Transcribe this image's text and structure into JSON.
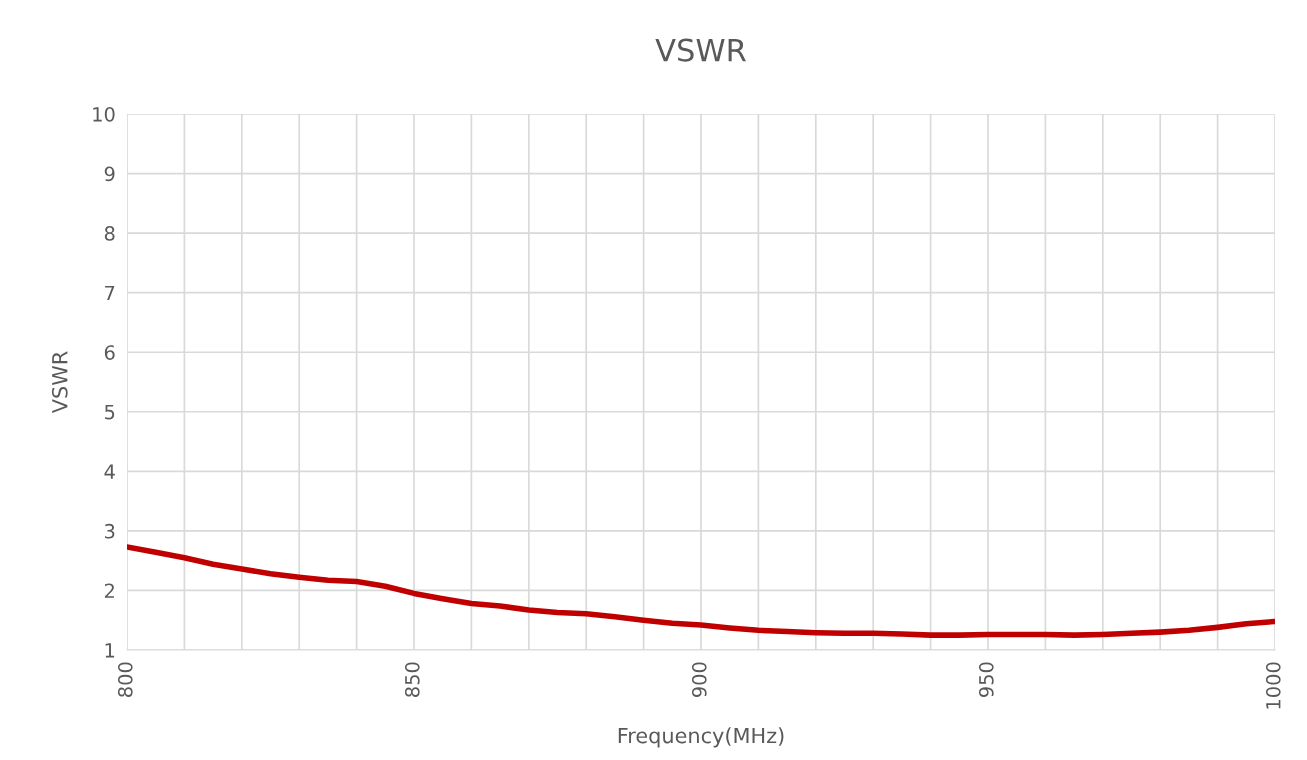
{
  "chart_data": {
    "type": "line",
    "title": "VSWR",
    "xlabel": "Frequency(MHz)",
    "ylabel": "VSWR",
    "x": [
      800,
      805,
      810,
      815,
      820,
      825,
      830,
      835,
      840,
      845,
      850,
      855,
      860,
      865,
      870,
      875,
      880,
      885,
      890,
      895,
      900,
      905,
      910,
      915,
      920,
      925,
      930,
      935,
      940,
      945,
      950,
      955,
      960,
      965,
      970,
      975,
      980,
      985,
      990,
      995,
      1000
    ],
    "series": [
      {
        "color": "#c00000",
        "values": [
          2.73,
          2.64,
          2.55,
          2.44,
          2.36,
          2.28,
          2.22,
          2.17,
          2.15,
          2.07,
          1.95,
          1.86,
          1.78,
          1.74,
          1.67,
          1.63,
          1.61,
          1.56,
          1.5,
          1.45,
          1.42,
          1.37,
          1.33,
          1.31,
          1.29,
          1.28,
          1.28,
          1.27,
          1.25,
          1.25,
          1.26,
          1.26,
          1.26,
          1.25,
          1.26,
          1.28,
          1.3,
          1.33,
          1.38,
          1.44,
          1.48
        ]
      }
    ],
    "xlim": [
      800,
      1000
    ],
    "xticks": [
      800,
      {
        "value": 810,
        "label": null
      },
      {
        "value": 820,
        "label": null
      },
      {
        "value": 830,
        "label": null
      },
      {
        "value": 840,
        "label": null
      },
      850,
      {
        "value": 860,
        "label": null
      },
      {
        "value": 870,
        "label": null
      },
      {
        "value": 880,
        "label": null
      },
      {
        "value": 890,
        "label": null
      },
      900,
      {
        "value": 910,
        "label": null
      },
      {
        "value": 920,
        "label": null
      },
      {
        "value": 930,
        "label": null
      },
      {
        "value": 940,
        "label": null
      },
      950,
      {
        "value": 960,
        "label": null
      },
      {
        "value": 970,
        "label": null
      },
      {
        "value": 980,
        "label": null
      },
      {
        "value": 990,
        "label": null
      },
      1000
    ],
    "ylim": [
      1,
      10
    ],
    "yticks": [
      1,
      2,
      3,
      4,
      5,
      6,
      7,
      8,
      9,
      10
    ],
    "grid": true,
    "marker": "none",
    "line_style": "solid"
  }
}
